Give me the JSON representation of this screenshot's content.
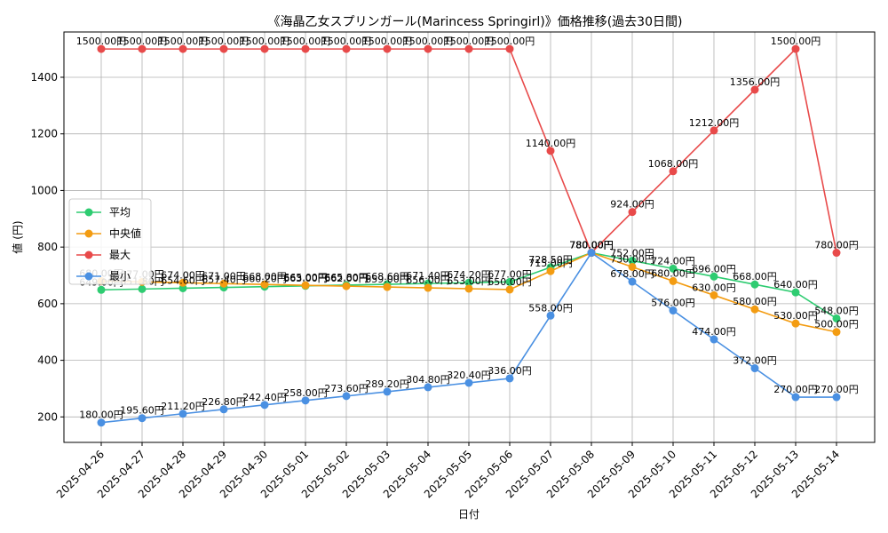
{
  "chart_data": {
    "type": "line",
    "title": "《海晶乙女スプリンガール(Marincess Springirl)》価格推移(過去30日間)",
    "xlabel": "日付",
    "ylabel": "値 (円)",
    "ylim": [
      110,
      1560
    ],
    "yticks": [
      200,
      400,
      600,
      800,
      1000,
      1200,
      1400
    ],
    "grid": true,
    "legend_position": "center-left",
    "label_suffix": "円",
    "categories": [
      "2025-04-26",
      "2025-04-27",
      "2025-04-28",
      "2025-04-29",
      "2025-04-30",
      "2025-05-01",
      "2025-05-02",
      "2025-05-03",
      "2025-05-04",
      "2025-05-05",
      "2025-05-06",
      "2025-05-07",
      "2025-05-08",
      "2025-05-09",
      "2025-05-10",
      "2025-05-11",
      "2025-05-12",
      "2025-05-13",
      "2025-05-14"
    ],
    "series": [
      {
        "name": "平均",
        "color": "#2ecc71",
        "values": [
          649.0,
          651.8,
          654.6,
          657.4,
          660.2,
          663.0,
          665.8,
          668.6,
          671.4,
          674.2,
          677.0,
          728.5,
          780.0,
          752.0,
          724.0,
          696.0,
          668.0,
          640.0,
          548.0
        ]
      },
      {
        "name": "中央値",
        "color": "#f39c12",
        "values": [
          680.0,
          677.0,
          674.0,
          671.0,
          668.0,
          665.0,
          662.0,
          659.0,
          656.0,
          653.0,
          650.0,
          715.0,
          780.0,
          730.0,
          680.0,
          630.0,
          580.0,
          530.0,
          500.0
        ]
      },
      {
        "name": "最大",
        "color": "#e84a4a",
        "values": [
          1500.0,
          1500.0,
          1500.0,
          1500.0,
          1500.0,
          1500.0,
          1500.0,
          1500.0,
          1500.0,
          1500.0,
          1500.0,
          1140.0,
          780.0,
          924.0,
          1068.0,
          1212.0,
          1356.0,
          1500.0,
          780.0
        ]
      },
      {
        "name": "最小",
        "color": "#4a90e2",
        "values": [
          180.0,
          195.6,
          211.2,
          226.8,
          242.4,
          258.0,
          273.6,
          289.2,
          304.8,
          320.4,
          336.0,
          558.0,
          780.0,
          678.0,
          576.0,
          474.0,
          372.0,
          270.0,
          270.0
        ]
      }
    ]
  }
}
